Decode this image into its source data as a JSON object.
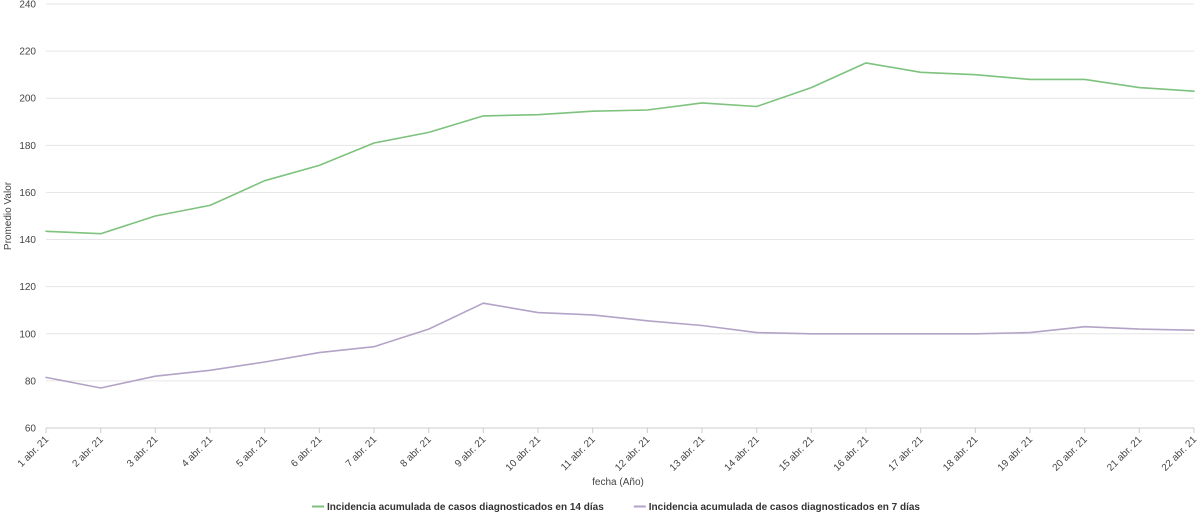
{
  "chart_data": {
    "type": "line",
    "title": "",
    "xlabel": "fecha (Año)",
    "ylabel": "Promedio Valor",
    "ylim": [
      60,
      240
    ],
    "yticks": [
      60,
      80,
      100,
      120,
      140,
      160,
      180,
      200,
      220,
      240
    ],
    "grid": true,
    "legend_position": "bottom-center",
    "categories": [
      "1 abr. 21",
      "2 abr. 21",
      "3 abr. 21",
      "4 abr. 21",
      "5 abr. 21",
      "6 abr. 21",
      "7 abr. 21",
      "8 abr. 21",
      "9 abr. 21",
      "10 abr. 21",
      "11 abr. 21",
      "12 abr. 21",
      "13 abr. 21",
      "14 abr. 21",
      "15 abr. 21",
      "16 abr. 21",
      "17 abr. 21",
      "18 abr. 21",
      "19 abr. 21",
      "20 abr. 21",
      "21 abr. 21",
      "22 abr. 21"
    ],
    "series": [
      {
        "name": "Incidencia acumulada de casos diagnosticados en 14 días",
        "color": "#7dc27d",
        "values": [
          143.5,
          142.5,
          150,
          154.5,
          165,
          171.5,
          181,
          185.5,
          192.5,
          193,
          194.5,
          195,
          198,
          196.5,
          204.5,
          215,
          211,
          210,
          208,
          208,
          204.5,
          203
        ]
      },
      {
        "name": "Incidencia acumulada de casos diagnosticados en 7 días",
        "color": "#b3a3c7",
        "values": [
          81.5,
          77,
          82,
          84.5,
          88,
          92,
          94.5,
          102,
          113,
          109,
          108,
          105.5,
          103.5,
          100.5,
          100,
          100,
          100,
          100,
          100.5,
          103,
          102,
          101.5
        ]
      }
    ]
  }
}
